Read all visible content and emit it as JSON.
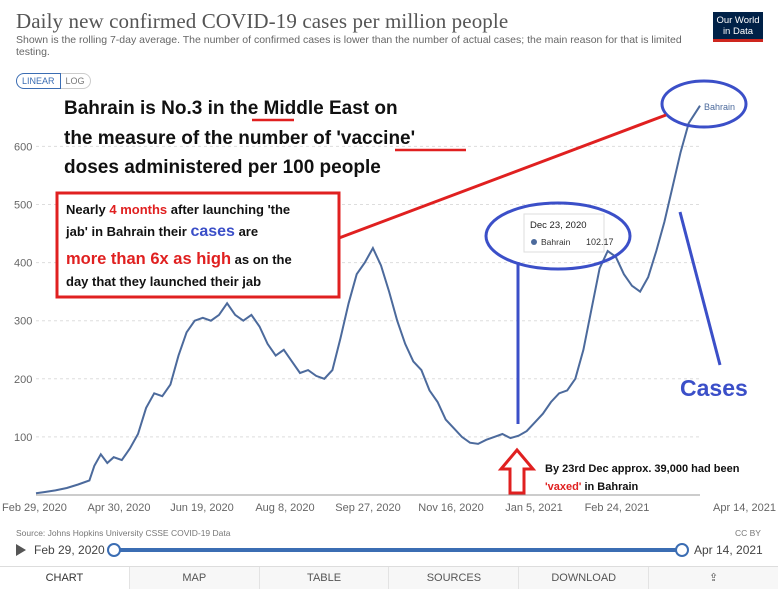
{
  "header": {
    "title": "Daily new confirmed COVID-19 cases per million people",
    "subtitle": "Shown is the rolling 7-day average. The number of confirmed cases is lower than the number of actual cases; the main reason for that is limited testing.",
    "logo_line1": "Our World",
    "logo_line2": "in Data"
  },
  "scale_toggle": {
    "linear": "LINEAR",
    "log": "LOG"
  },
  "annotations": {
    "headline_line1": "Bahrain is No.3 in the Middle East on",
    "headline_line2": "the measure of the number of 'vaccine'",
    "headline_line3": "doses administered per 100 people",
    "box_line1_a": "Nearly ",
    "box_line1_b": "4 months",
    "box_line1_c": " after launching 'the",
    "box_line2_a": "jab' in Bahrain their ",
    "box_line2_b": "cases",
    "box_line2_c": " are",
    "box_line3_a": "more than 6x as high",
    "box_line3_b": " as on the",
    "box_line4": "day that they launched their jab",
    "tooltip_date": "Dec 23, 2020",
    "tooltip_series": "Bahrain",
    "tooltip_value": "102.17",
    "cases_label": "Cases",
    "vax_note_line1": "By 23rd Dec approx. 39,000 had been",
    "vax_note_line2": "'vaxed'",
    "vax_note_line2b": " in Bahrain",
    "series_label": "Bahrain"
  },
  "chart_data": {
    "type": "line",
    "title": "Daily new confirmed COVID-19 cases per million people",
    "xlabel": "",
    "ylabel": "",
    "ylim": [
      0,
      700
    ],
    "yticks": [
      100,
      200,
      300,
      400,
      500,
      600
    ],
    "xticks": [
      "Feb 29, 2020",
      "Apr 30, 2020",
      "Jun 19, 2020",
      "Aug 8, 2020",
      "Sep 27, 2020",
      "Nov 16, 2020",
      "Jan 5, 2021",
      "Feb 24, 2021",
      "Apr 14, 2021"
    ],
    "x_start": "2020-02-29",
    "x_end": "2021-04-14",
    "grid": true,
    "series": [
      {
        "name": "Bahrain",
        "color": "#4c6a9c",
        "points": [
          [
            "2020-02-29",
            3
          ],
          [
            "2020-03-05",
            5
          ],
          [
            "2020-03-12",
            8
          ],
          [
            "2020-03-19",
            12
          ],
          [
            "2020-03-26",
            18
          ],
          [
            "2020-04-02",
            25
          ],
          [
            "2020-04-05",
            50
          ],
          [
            "2020-04-09",
            70
          ],
          [
            "2020-04-13",
            55
          ],
          [
            "2020-04-17",
            65
          ],
          [
            "2020-04-22",
            60
          ],
          [
            "2020-04-27",
            80
          ],
          [
            "2020-05-02",
            105
          ],
          [
            "2020-05-07",
            150
          ],
          [
            "2020-05-12",
            175
          ],
          [
            "2020-05-17",
            170
          ],
          [
            "2020-05-22",
            190
          ],
          [
            "2020-05-27",
            240
          ],
          [
            "2020-06-01",
            280
          ],
          [
            "2020-06-06",
            300
          ],
          [
            "2020-06-11",
            305
          ],
          [
            "2020-06-16",
            300
          ],
          [
            "2020-06-21",
            310
          ],
          [
            "2020-06-26",
            330
          ],
          [
            "2020-07-01",
            310
          ],
          [
            "2020-07-06",
            300
          ],
          [
            "2020-07-11",
            310
          ],
          [
            "2020-07-16",
            290
          ],
          [
            "2020-07-21",
            260
          ],
          [
            "2020-07-26",
            240
          ],
          [
            "2020-07-31",
            250
          ],
          [
            "2020-08-05",
            230
          ],
          [
            "2020-08-10",
            210
          ],
          [
            "2020-08-15",
            215
          ],
          [
            "2020-08-20",
            205
          ],
          [
            "2020-08-25",
            200
          ],
          [
            "2020-08-30",
            215
          ],
          [
            "2020-09-04",
            270
          ],
          [
            "2020-09-09",
            330
          ],
          [
            "2020-09-14",
            380
          ],
          [
            "2020-09-19",
            400
          ],
          [
            "2020-09-24",
            425
          ],
          [
            "2020-09-29",
            395
          ],
          [
            "2020-10-04",
            350
          ],
          [
            "2020-10-09",
            300
          ],
          [
            "2020-10-14",
            260
          ],
          [
            "2020-10-19",
            230
          ],
          [
            "2020-10-24",
            215
          ],
          [
            "2020-10-29",
            180
          ],
          [
            "2020-11-03",
            160
          ],
          [
            "2020-11-08",
            130
          ],
          [
            "2020-11-13",
            115
          ],
          [
            "2020-11-18",
            100
          ],
          [
            "2020-11-23",
            90
          ],
          [
            "2020-11-28",
            88
          ],
          [
            "2020-12-03",
            95
          ],
          [
            "2020-12-08",
            100
          ],
          [
            "2020-12-13",
            105
          ],
          [
            "2020-12-18",
            98
          ],
          [
            "2020-12-23",
            102
          ],
          [
            "2020-12-28",
            110
          ],
          [
            "2021-01-02",
            125
          ],
          [
            "2021-01-07",
            140
          ],
          [
            "2021-01-12",
            160
          ],
          [
            "2021-01-17",
            175
          ],
          [
            "2021-01-22",
            180
          ],
          [
            "2021-01-27",
            200
          ],
          [
            "2021-02-01",
            250
          ],
          [
            "2021-02-06",
            320
          ],
          [
            "2021-02-11",
            390
          ],
          [
            "2021-02-16",
            420
          ],
          [
            "2021-02-21",
            410
          ],
          [
            "2021-02-26",
            380
          ],
          [
            "2021-03-03",
            360
          ],
          [
            "2021-03-08",
            350
          ],
          [
            "2021-03-13",
            375
          ],
          [
            "2021-03-18",
            420
          ],
          [
            "2021-03-23",
            470
          ],
          [
            "2021-03-28",
            530
          ],
          [
            "2021-04-02",
            590
          ],
          [
            "2021-04-07",
            640
          ],
          [
            "2021-04-14",
            670
          ]
        ]
      }
    ]
  },
  "footer": {
    "source": "Source: Johns Hopkins University CSSE COVID-19 Data",
    "license": "CC BY",
    "timeline_start": "Feb 29, 2020",
    "timeline_end": "Apr 14, 2021"
  },
  "tabs": [
    {
      "label": "CHART"
    },
    {
      "label": "MAP"
    },
    {
      "label": "TABLE"
    },
    {
      "label": "SOURCES"
    },
    {
      "label": "DOWNLOAD"
    },
    {
      "label": "⇪"
    }
  ]
}
